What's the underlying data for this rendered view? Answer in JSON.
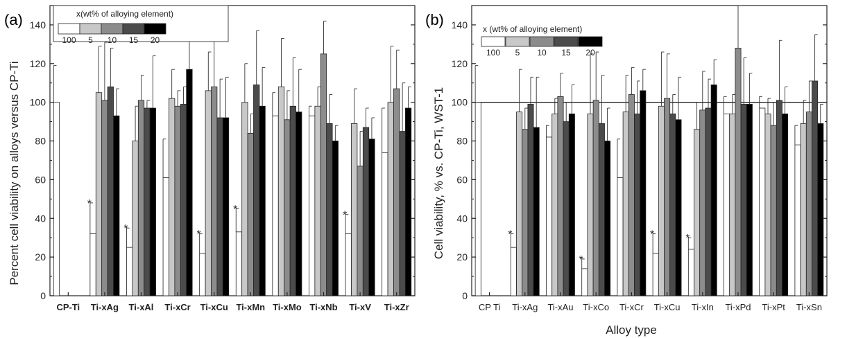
{
  "chart_data": [
    {
      "type": "bar",
      "panel_label": "(a)",
      "title": "",
      "xlabel": "",
      "ylabel": "Percent cell  viability on alloys versus CP-Ti",
      "ylim": [
        0,
        150
      ],
      "yticks": [
        0,
        20,
        40,
        60,
        80,
        100,
        120,
        140
      ],
      "grid": false,
      "legend_position": "top-left",
      "legend_title": "x(wt% of alloying element)",
      "legend_labels": [
        "100",
        "5",
        "10",
        "15",
        "20"
      ],
      "series_colors": [
        "#ffffff",
        "#c8c8c8",
        "#8c8c8c",
        "#4b4b4b",
        "#000000"
      ],
      "categories": [
        "CP-Ti",
        "Ti-xAg",
        "Ti-xAl",
        "Ti-xCr",
        "Ti-xCu",
        "Ti-xMn",
        "Ti-xMo",
        "Ti-xNb",
        "Ti-xV",
        "Ti-xZr"
      ],
      "series": [
        {
          "values": [
            100,
            32,
            25,
            61,
            22,
            33,
            93,
            93,
            32,
            74
          ],
          "errors": [
            19,
            16,
            10,
            20,
            10,
            12,
            12,
            5,
            10,
            23
          ]
        },
        {
          "values": [
            null,
            105,
            80,
            102,
            106,
            100,
            108,
            98,
            89,
            100
          ],
          "errors": [
            null,
            24,
            18,
            15,
            20,
            20,
            25,
            10,
            18,
            29
          ]
        },
        {
          "values": [
            null,
            101,
            101,
            98,
            108,
            84,
            91,
            125,
            67,
            107
          ],
          "errors": [
            null,
            30,
            13,
            8,
            37,
            10,
            15,
            17,
            18,
            20
          ]
        },
        {
          "values": [
            null,
            108,
            97,
            99,
            92,
            109,
            98,
            89,
            87,
            85
          ],
          "errors": [
            null,
            20,
            4,
            9,
            20,
            28,
            25,
            15,
            10,
            25
          ]
        },
        {
          "values": [
            null,
            93,
            97,
            117,
            92,
            98,
            95,
            80,
            81,
            97
          ],
          "errors": [
            null,
            14,
            27,
            20,
            21,
            20,
            22,
            8,
            11,
            11
          ]
        }
      ],
      "significance": [
        {
          "category": "Ti-xAg",
          "label": "*"
        },
        {
          "category": "Ti-xAl",
          "label": "*"
        },
        {
          "category": "Ti-xCu",
          "label": "*"
        },
        {
          "category": "Ti-xMn",
          "label": "*"
        },
        {
          "category": "Ti-xV",
          "label": "*"
        }
      ]
    },
    {
      "type": "bar",
      "panel_label": "(b)",
      "title": "",
      "xlabel": "Alloy type",
      "ylabel": "Cell  viability, % vs. CP-Ti, WST-1",
      "ylim": [
        0,
        150
      ],
      "yticks": [
        0,
        20,
        40,
        60,
        80,
        100,
        120,
        140
      ],
      "grid": false,
      "reference_line": 100,
      "legend_position": "top-left",
      "legend_title": "x (wt% of alloying element)",
      "legend_labels": [
        "100",
        "5",
        "10",
        "15",
        "20"
      ],
      "series_colors": [
        "#ffffff",
        "#c8c8c8",
        "#8c8c8c",
        "#4b4b4b",
        "#000000"
      ],
      "categories": [
        "CP Ti",
        "Ti-xAg",
        "Ti-xAu",
        "Ti-xCo",
        "Ti-xCr",
        "Ti-xCu",
        "Ti-xIn",
        "Ti-xPd",
        "Ti-xPt",
        "Ti-xSn"
      ],
      "series": [
        {
          "values": [
            100,
            25,
            82,
            14,
            61,
            22,
            24,
            94,
            97,
            78
          ],
          "errors": [
            19,
            7,
            6,
            5,
            20,
            10,
            6,
            9,
            6,
            10
          ]
        },
        {
          "values": [
            null,
            95,
            94,
            94,
            95,
            98,
            86,
            94,
            94,
            89
          ],
          "errors": [
            null,
            22,
            8,
            31,
            19,
            28,
            14,
            10,
            8,
            12
          ]
        },
        {
          "values": [
            null,
            86,
            103,
            101,
            104,
            102,
            96,
            128,
            88,
            95
          ],
          "errors": [
            null,
            11,
            12,
            25,
            14,
            23,
            20,
            22,
            12,
            16
          ]
        },
        {
          "values": [
            null,
            99,
            90,
            89,
            94,
            94,
            97,
            99,
            101,
            111
          ],
          "errors": [
            null,
            14,
            10,
            25,
            17,
            10,
            15,
            24,
            31,
            24
          ]
        },
        {
          "values": [
            null,
            87,
            94,
            80,
            106,
            91,
            109,
            99,
            94,
            89
          ],
          "errors": [
            null,
            26,
            15,
            17,
            11,
            22,
            13,
            16,
            14,
            10
          ]
        }
      ],
      "significance": [
        {
          "category": "Ti-xAg",
          "label": "*"
        },
        {
          "category": "Ti-xCo",
          "label": "*"
        },
        {
          "category": "Ti-xCu",
          "label": "*"
        },
        {
          "category": "Ti-xIn",
          "label": "*"
        }
      ]
    }
  ]
}
